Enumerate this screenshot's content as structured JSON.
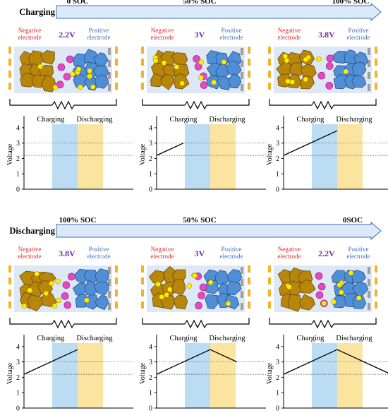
{
  "rows": [
    {
      "key": "charging",
      "process_label": "Charging",
      "soc_labels": [
        "0 SOC",
        "50% SOC",
        "100% SOC"
      ],
      "panels": [
        {
          "voltage": "2.2V",
          "ions_negative": 2,
          "ions_positive": 7
        },
        {
          "voltage": "3V",
          "ions_negative": 5,
          "ions_positive": 4
        },
        {
          "voltage": "3.8V",
          "ions_negative": 8,
          "ions_positive": 1
        }
      ]
    },
    {
      "key": "discharging",
      "process_label": "Discharging",
      "soc_labels": [
        "100% SOC",
        "50% SOC",
        "0SOC"
      ],
      "panels": [
        {
          "voltage": "3.8V",
          "ions_negative": 8,
          "ions_positive": 1
        },
        {
          "voltage": "3V",
          "ions_negative": 5,
          "ions_positive": 4
        },
        {
          "voltage": "2.2V",
          "ions_negative": 2,
          "ions_positive": 7
        }
      ]
    }
  ],
  "electrode_labels": {
    "negative": [
      "Negative",
      "electrode"
    ],
    "positive": [
      "Positive",
      "electrode"
    ]
  },
  "colors": {
    "negative_electrode": "#b8860b",
    "positive_electrode": "#4f8fd6",
    "lithium_ion": "#ffee00",
    "anion": "#e845c8",
    "charging_band": "#bcdcf4",
    "discharging_band": "#fbe3a0",
    "arrow_fill": "#dce9f8",
    "current_collector": "#f5b324",
    "separator": "#9e9e9e",
    "cell_background": "#dde8f4"
  },
  "chart_data": [
    {
      "type": "line",
      "title": "",
      "band_labels": [
        "Charging",
        "Discharging"
      ],
      "ylabel": "Voltage",
      "yticks": [
        0,
        1,
        2,
        3,
        4
      ],
      "ylim": [
        0,
        4.5
      ],
      "reference_lines": [
        3.0,
        2.2
      ],
      "series": [
        {
          "x": [],
          "y": []
        }
      ]
    },
    {
      "type": "line",
      "title": "",
      "band_labels": [
        "Charging",
        "Discharging"
      ],
      "ylabel": "Voltage",
      "yticks": [
        0,
        1,
        2,
        3,
        4
      ],
      "ylim": [
        0,
        4.5
      ],
      "reference_lines": [
        3.0,
        2.2
      ],
      "series": [
        {
          "x": [
            0,
            0.5
          ],
          "y": [
            2.2,
            3.0
          ]
        }
      ]
    },
    {
      "type": "line",
      "title": "",
      "band_labels": [
        "Charging",
        "Discharging"
      ],
      "ylabel": "Voltage",
      "yticks": [
        0,
        1,
        2,
        3,
        4
      ],
      "ylim": [
        0,
        4.5
      ],
      "reference_lines": [
        3.0,
        2.2
      ],
      "series": [
        {
          "x": [
            0,
            1
          ],
          "y": [
            2.2,
            3.8
          ]
        }
      ]
    },
    {
      "type": "line",
      "title": "",
      "band_labels": [
        "Charging",
        "Discharging"
      ],
      "ylabel": "Voltage",
      "yticks": [
        0,
        1,
        2,
        3,
        4
      ],
      "ylim": [
        0,
        4.5
      ],
      "reference_lines": [
        3.0,
        2.2
      ],
      "series": [
        {
          "x": [
            0,
            1
          ],
          "y": [
            2.2,
            3.8
          ]
        }
      ]
    },
    {
      "type": "line",
      "title": "",
      "band_labels": [
        "Charging",
        "Discharging"
      ],
      "ylabel": "Voltage",
      "yticks": [
        0,
        1,
        2,
        3,
        4
      ],
      "ylim": [
        0,
        4.5
      ],
      "reference_lines": [
        3.0,
        2.2
      ],
      "series": [
        {
          "x": [
            0,
            1,
            1.5
          ],
          "y": [
            2.2,
            3.8,
            3.0
          ]
        }
      ]
    },
    {
      "type": "line",
      "title": "",
      "band_labels": [
        "Charging",
        "Discharging"
      ],
      "ylabel": "Voltage",
      "yticks": [
        0,
        1,
        2,
        3,
        4
      ],
      "ylim": [
        0,
        4.5
      ],
      "reference_lines": [
        3.0,
        2.2
      ],
      "series": [
        {
          "x": [
            0,
            1,
            2
          ],
          "y": [
            2.2,
            3.8,
            2.2
          ]
        }
      ]
    }
  ]
}
